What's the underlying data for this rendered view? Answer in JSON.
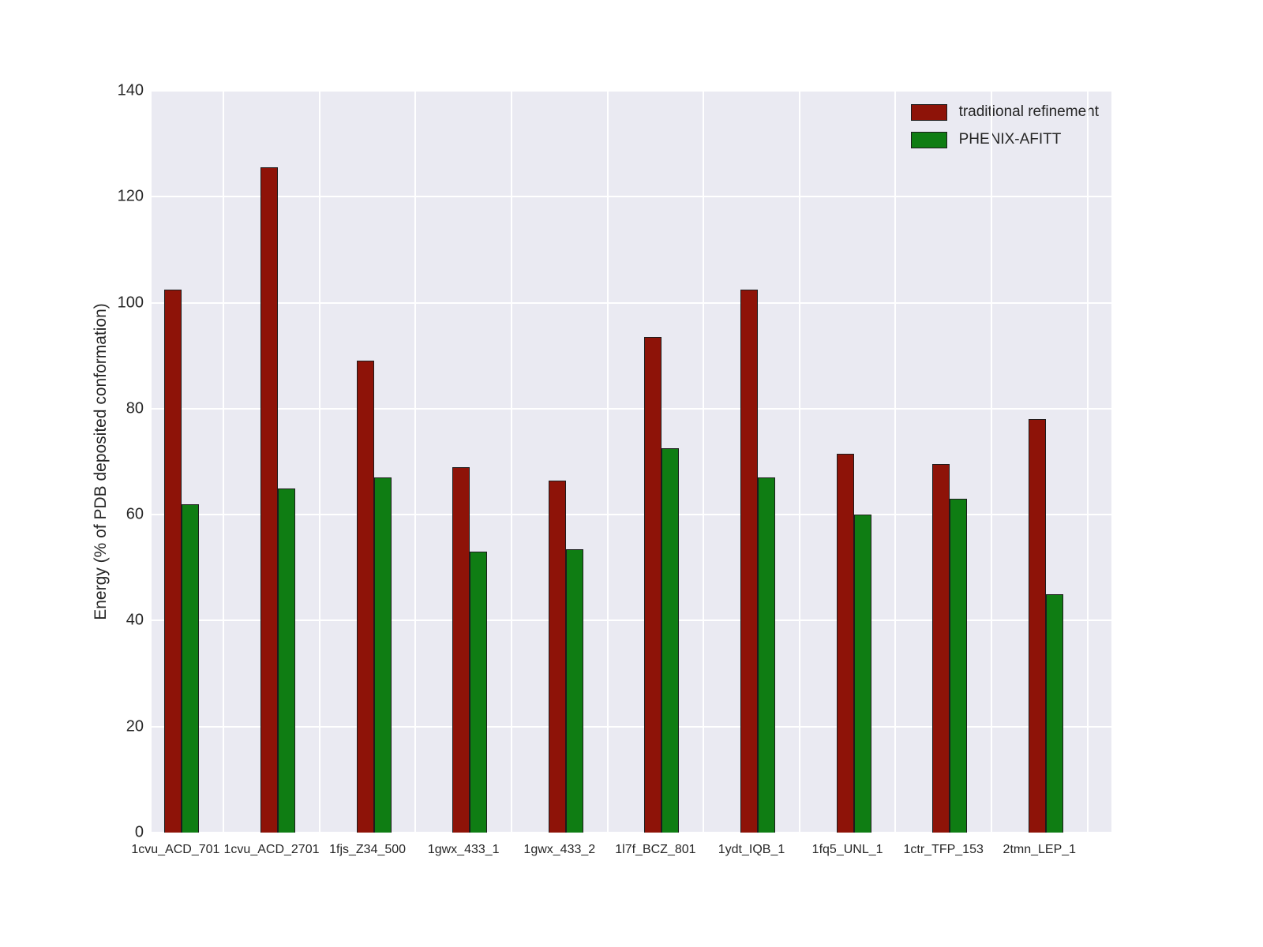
{
  "figure": {
    "background_color": "#ffffff",
    "plot_background_color": "#eaeaf2",
    "gridline_color": "#ffffff"
  },
  "chart_data": {
    "type": "bar",
    "title": "",
    "xlabel": "",
    "ylabel": "Energy (% of PDB deposited conformation)",
    "ylim": [
      0,
      140
    ],
    "yticks": [
      0,
      20,
      40,
      60,
      80,
      100,
      120,
      140
    ],
    "grid": true,
    "legend_position": "upper right",
    "categories": [
      "1cvu_ACD_701",
      "1cvu_ACD_2701",
      "1fjs_Z34_500",
      "1gwx_433_1",
      "1gwx_433_2",
      "1l7f_BCZ_801",
      "1ydt_IQB_1",
      "1fq5_UNL_1",
      "1ctr_TFP_153",
      "2tmn_LEP_1"
    ],
    "series": [
      {
        "name": "traditional refinement",
        "color": "#8e1308",
        "values": [
          102.5,
          125.5,
          89,
          69,
          66.5,
          93.5,
          102.5,
          71.5,
          69.5,
          78
        ]
      },
      {
        "name": "PHENIX-AFITT",
        "color": "#0f7d13",
        "values": [
          62,
          65,
          67,
          53,
          53.5,
          72.5,
          67,
          60,
          63,
          45
        ]
      }
    ]
  }
}
